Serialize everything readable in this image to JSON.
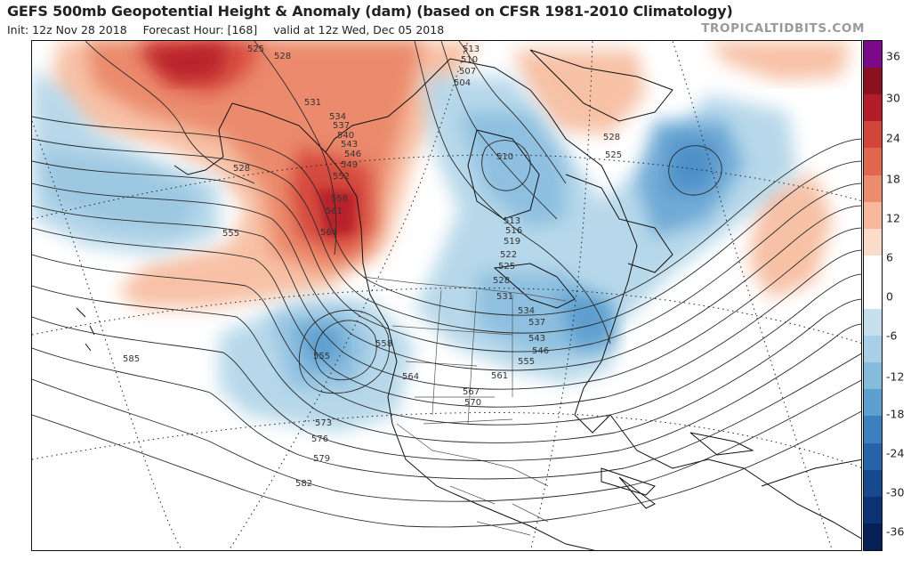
{
  "header": {
    "title": "GEFS 500mb Geopotential Height & Anomaly (dam) (based on CFSR 1981-2010 Climatology)",
    "init": "Init: 12z Nov 28 2018",
    "forecast_hour": "Forecast Hour: [168]",
    "valid": "valid at 12z Wed, Dec 05 2018",
    "brand": "TROPICALTIDBITS.COM"
  },
  "colorbar": {
    "ticks": [
      "36",
      "30",
      "24",
      "18",
      "12",
      "6",
      "0",
      "-6",
      "-12",
      "-18",
      "-24",
      "-30",
      "-36"
    ],
    "colors": [
      "#7a0a8a",
      "#8b1020",
      "#b51c2a",
      "#d2453a",
      "#e0674e",
      "#ec8c6e",
      "#f6b79c",
      "#fbdccb",
      "#ffffff",
      "#ffffff",
      "#c6e0ee",
      "#a8cfe6",
      "#86bbdc",
      "#5d9fcf",
      "#3c80bf",
      "#2763a8",
      "#17498e",
      "#0b3272",
      "#061f55"
    ]
  },
  "contour_labels": [
    {
      "id": "525-top",
      "text": "525"
    },
    {
      "id": "528-top",
      "text": "528"
    },
    {
      "id": "531",
      "text": "531"
    },
    {
      "id": "534-ak",
      "text": "534"
    },
    {
      "id": "537-ak",
      "text": "537"
    },
    {
      "id": "540-ak",
      "text": "540"
    },
    {
      "id": "543-ak",
      "text": "543"
    },
    {
      "id": "546-ak",
      "text": "546"
    },
    {
      "id": "549-ak",
      "text": "549"
    },
    {
      "id": "552-ak",
      "text": "552"
    },
    {
      "id": "558-bc",
      "text": "558"
    },
    {
      "id": "561-bc",
      "text": "561"
    },
    {
      "id": "564-bc",
      "text": "564"
    },
    {
      "id": "528-pac",
      "text": "528"
    },
    {
      "id": "555-pac",
      "text": "555"
    },
    {
      "id": "585",
      "text": "585"
    },
    {
      "id": "555-low",
      "text": "555"
    },
    {
      "id": "558-us",
      "text": "558"
    },
    {
      "id": "564-us",
      "text": "564"
    },
    {
      "id": "561-us",
      "text": "561"
    },
    {
      "id": "567",
      "text": "567"
    },
    {
      "id": "570",
      "text": "570"
    },
    {
      "id": "573",
      "text": "573"
    },
    {
      "id": "576",
      "text": "576"
    },
    {
      "id": "579",
      "text": "579"
    },
    {
      "id": "582",
      "text": "582"
    },
    {
      "id": "513-top",
      "text": "513"
    },
    {
      "id": "510-top",
      "text": "510"
    },
    {
      "id": "507",
      "text": "507"
    },
    {
      "id": "504",
      "text": "504"
    },
    {
      "id": "510-hb",
      "text": "510"
    },
    {
      "id": "513-ca",
      "text": "513"
    },
    {
      "id": "516",
      "text": "516"
    },
    {
      "id": "519",
      "text": "519"
    },
    {
      "id": "522",
      "text": "522"
    },
    {
      "id": "525-ca",
      "text": "525"
    },
    {
      "id": "528-ca",
      "text": "528"
    },
    {
      "id": "531-ca",
      "text": "531"
    },
    {
      "id": "534-gl",
      "text": "534"
    },
    {
      "id": "537-gl",
      "text": "537"
    },
    {
      "id": "543-gl",
      "text": "543"
    },
    {
      "id": "546-gl",
      "text": "546"
    },
    {
      "id": "555-gl",
      "text": "555"
    },
    {
      "id": "528-atl",
      "text": "528"
    },
    {
      "id": "525-atl",
      "text": "525"
    }
  ]
}
